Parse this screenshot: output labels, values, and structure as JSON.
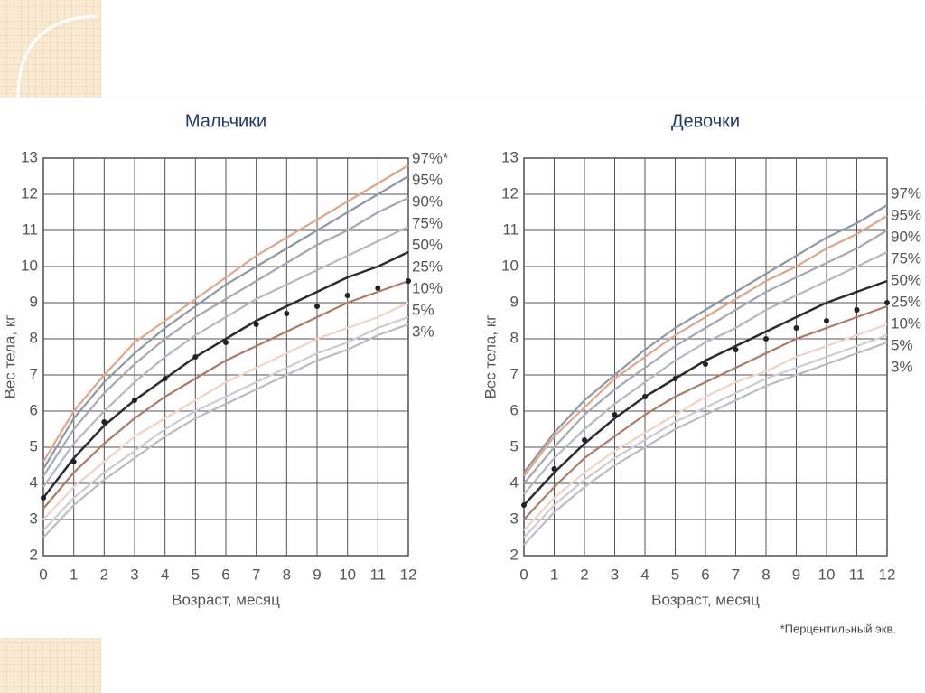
{
  "chart_data": [
    {
      "type": "line",
      "title": "Мальчики",
      "xlabel": "Возраст, месяц",
      "ylabel": "Вес тела, кг",
      "x": [
        0,
        1,
        2,
        3,
        4,
        5,
        6,
        7,
        8,
        9,
        10,
        11,
        12
      ],
      "xlim": [
        0,
        12
      ],
      "xticks": [
        0,
        1,
        2,
        3,
        4,
        5,
        6,
        7,
        8,
        9,
        10,
        11,
        12
      ],
      "ylim": [
        2,
        13
      ],
      "yticks": [
        2,
        3,
        4,
        5,
        6,
        7,
        8,
        9,
        10,
        11,
        12,
        13
      ],
      "grid": true,
      "series": [
        {
          "name": "97%*",
          "color": "#e2a586",
          "values": [
            4.6,
            6.0,
            7.0,
            7.9,
            8.5,
            9.1,
            9.7,
            10.3,
            10.8,
            11.3,
            11.8,
            12.3,
            12.8
          ]
        },
        {
          "name": "95%",
          "color": "#8e98a6",
          "values": [
            4.4,
            5.8,
            6.8,
            7.6,
            8.3,
            8.9,
            9.5,
            10.0,
            10.5,
            11.0,
            11.5,
            12.0,
            12.5
          ]
        },
        {
          "name": "90%",
          "color": "#a3aab5",
          "values": [
            4.2,
            5.5,
            6.5,
            7.3,
            8.0,
            8.6,
            9.1,
            9.6,
            10.1,
            10.6,
            11.0,
            11.5,
            11.9
          ]
        },
        {
          "name": "75%",
          "color": "#b3b9c2",
          "values": [
            3.9,
            5.1,
            6.0,
            6.8,
            7.5,
            8.1,
            8.6,
            9.1,
            9.5,
            9.9,
            10.3,
            10.7,
            11.1
          ]
        },
        {
          "name": "50%",
          "color": "#2b2b33",
          "values": [
            3.6,
            4.7,
            5.6,
            6.3,
            6.9,
            7.5,
            8.0,
            8.5,
            8.9,
            9.3,
            9.7,
            10.0,
            10.4
          ]
        },
        {
          "name": "25%",
          "color": "#b07a62",
          "values": [
            3.3,
            4.3,
            5.1,
            5.8,
            6.4,
            6.9,
            7.4,
            7.8,
            8.2,
            8.6,
            9.0,
            9.3,
            9.6
          ]
        },
        {
          "name": "10%",
          "color": "#f0d3c4",
          "values": [
            3.0,
            3.9,
            4.6,
            5.3,
            5.8,
            6.3,
            6.8,
            7.2,
            7.6,
            8.0,
            8.3,
            8.6,
            9.0
          ]
        },
        {
          "name": "5%",
          "color": "#c9cdd2",
          "values": [
            2.7,
            3.6,
            4.3,
            4.9,
            5.5,
            6.0,
            6.4,
            6.8,
            7.2,
            7.6,
            7.9,
            8.3,
            8.6
          ]
        },
        {
          "name": "3%",
          "color": "#b9bdc3",
          "values": [
            2.5,
            3.4,
            4.1,
            4.7,
            5.3,
            5.8,
            6.2,
            6.6,
            7.0,
            7.4,
            7.7,
            8.1,
            8.4
          ]
        },
        {
          "color": "#222222",
          "marker": "dot",
          "values": [
            3.6,
            4.6,
            5.7,
            6.3,
            6.9,
            7.5,
            7.9,
            8.4,
            8.7,
            8.9,
            9.2,
            9.4,
            9.6
          ]
        }
      ]
    },
    {
      "type": "line",
      "title": "Девочки",
      "xlabel": "Возраст, месяц",
      "ylabel": "Вес тела, кг",
      "annotation": "*Перцентильный экв.",
      "x": [
        0,
        1,
        2,
        3,
        4,
        5,
        6,
        7,
        8,
        9,
        10,
        11,
        12
      ],
      "xlim": [
        0,
        12
      ],
      "xticks": [
        0,
        1,
        2,
        3,
        4,
        5,
        6,
        7,
        8,
        9,
        10,
        11,
        12
      ],
      "ylim": [
        2,
        13
      ],
      "yticks": [
        2,
        3,
        4,
        5,
        6,
        7,
        8,
        9,
        10,
        11,
        12,
        13
      ],
      "grid": true,
      "series": [
        {
          "name": "97%",
          "color": "#8e98a6",
          "values": [
            4.3,
            5.4,
            6.3,
            7.0,
            7.7,
            8.3,
            8.8,
            9.3,
            9.8,
            10.3,
            10.8,
            11.2,
            11.7
          ]
        },
        {
          "name": "95%",
          "color": "#e2a586",
          "values": [
            4.2,
            5.3,
            6.1,
            6.9,
            7.5,
            8.1,
            8.6,
            9.1,
            9.6,
            10.0,
            10.5,
            10.9,
            11.4
          ]
        },
        {
          "name": "90%",
          "color": "#a3aab5",
          "values": [
            4.0,
            5.0,
            5.9,
            6.6,
            7.2,
            7.8,
            8.3,
            8.8,
            9.3,
            9.7,
            10.1,
            10.5,
            11.0
          ]
        },
        {
          "name": "75%",
          "color": "#b3b9c2",
          "values": [
            3.7,
            4.7,
            5.5,
            6.2,
            6.8,
            7.4,
            7.9,
            8.3,
            8.8,
            9.2,
            9.6,
            10.0,
            10.4
          ]
        },
        {
          "name": "50%",
          "color": "#2b2b33",
          "values": [
            3.4,
            4.3,
            5.1,
            5.8,
            6.4,
            6.9,
            7.4,
            7.8,
            8.2,
            8.6,
            9.0,
            9.3,
            9.6
          ]
        },
        {
          "name": "25%",
          "color": "#b07a62",
          "values": [
            3.0,
            3.9,
            4.7,
            5.3,
            5.9,
            6.4,
            6.8,
            7.2,
            7.6,
            8.0,
            8.3,
            8.6,
            8.9
          ]
        },
        {
          "name": "10%",
          "color": "#f0d3c4",
          "values": [
            2.7,
            3.6,
            4.3,
            4.9,
            5.4,
            5.9,
            6.4,
            6.8,
            7.1,
            7.5,
            7.8,
            8.1,
            8.4
          ]
        },
        {
          "name": "5%",
          "color": "#c9cdd2",
          "values": [
            2.5,
            3.4,
            4.1,
            4.7,
            5.2,
            5.7,
            6.1,
            6.5,
            6.9,
            7.2,
            7.5,
            7.8,
            8.1
          ]
        },
        {
          "name": "3%",
          "color": "#b9bdc3",
          "values": [
            2.3,
            3.2,
            3.9,
            4.5,
            5.0,
            5.5,
            5.9,
            6.3,
            6.7,
            7.0,
            7.3,
            7.6,
            7.9
          ]
        },
        {
          "color": "#222222",
          "marker": "dot",
          "values": [
            3.4,
            4.4,
            5.2,
            5.9,
            6.4,
            6.9,
            7.3,
            7.7,
            8.0,
            8.3,
            8.5,
            8.8,
            9.0
          ]
        }
      ]
    }
  ]
}
